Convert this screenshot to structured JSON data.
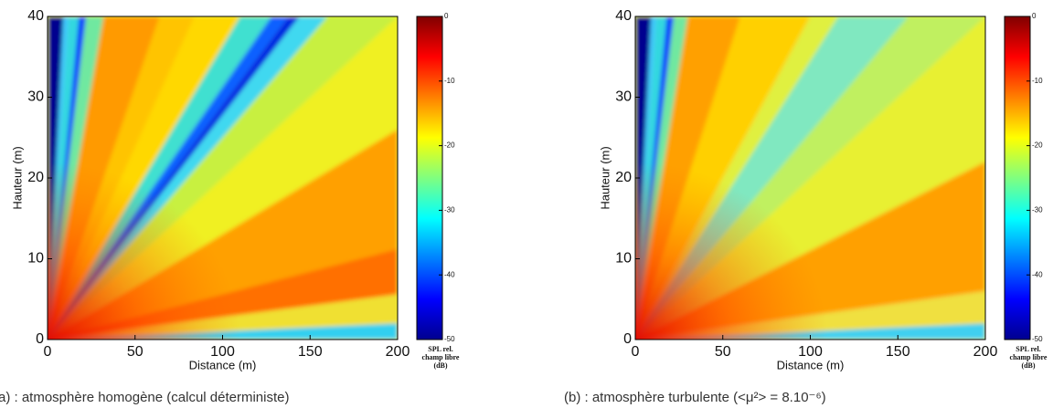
{
  "chart_data": [
    {
      "type": "heatmap",
      "x_label": "Distance (m)",
      "y_label": "Hauteur (m)",
      "xlim": [
        0,
        200
      ],
      "xticks": [
        0,
        50,
        100,
        150,
        200
      ],
      "ylim": [
        0,
        40
      ],
      "yticks": [
        0,
        10,
        20,
        30,
        40
      ],
      "colormap": "jet",
      "clim": [
        -50,
        0
      ],
      "cticks": [
        0,
        -10,
        -20,
        -30,
        -40,
        -50
      ],
      "colorbar_label": [
        "SPL rel.",
        "champ libre",
        "(dB)"
      ],
      "caption": "(a) : atmosphère homogène (calcul déterministe)"
    },
    {
      "type": "heatmap",
      "x_label": "Distance (m)",
      "y_label": "Hauteur (m)",
      "xlim": [
        0,
        200
      ],
      "xticks": [
        0,
        50,
        100,
        150,
        200
      ],
      "ylim": [
        0,
        40
      ],
      "yticks": [
        0,
        10,
        20,
        30,
        40
      ],
      "colormap": "jet",
      "clim": [
        -50,
        0
      ],
      "cticks": [
        0,
        -10,
        -20,
        -30,
        -40,
        -50
      ],
      "colorbar_label": [
        "SPL rel.",
        "champ libre",
        "(dB)"
      ],
      "caption": "(b) : atmosphère turbulente (<μ²> = 8.10⁻⁶)"
    }
  ]
}
